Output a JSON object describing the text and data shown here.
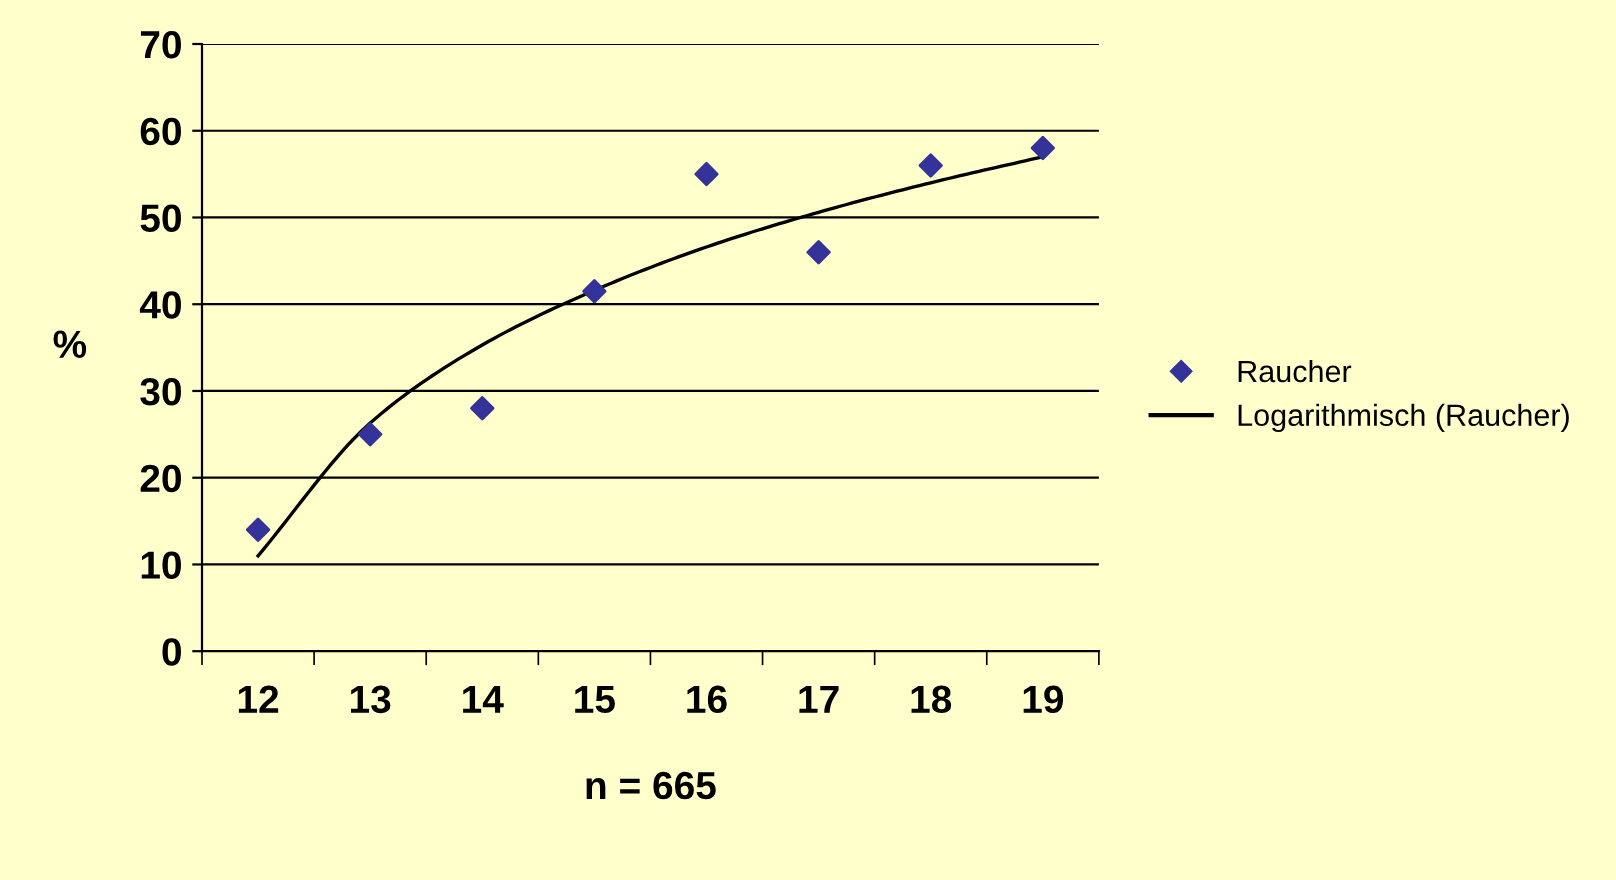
{
  "chart_data": {
    "type": "scatter",
    "xlabel": "n = 665",
    "ylabel": "%",
    "categories": [
      "12",
      "13",
      "14",
      "15",
      "16",
      "17",
      "18",
      "19"
    ],
    "series": [
      {
        "name": "Raucher",
        "color": "#333399",
        "marker": "diamond",
        "values": [
          14,
          25,
          28,
          41.5,
          55,
          46,
          56,
          58
        ]
      },
      {
        "name": "Logarithmisch (Raucher)",
        "type": "line",
        "color": "#000000",
        "marker": "none",
        "line_style": "solid",
        "values": [
          11,
          26.3,
          35.3,
          41.6,
          46.6,
          50.6,
          54,
          57
        ]
      }
    ],
    "ylim": [
      0,
      70
    ],
    "yticks": [
      0,
      10,
      20,
      30,
      40,
      50,
      60,
      70
    ],
    "grid": "y",
    "legend": "right"
  }
}
